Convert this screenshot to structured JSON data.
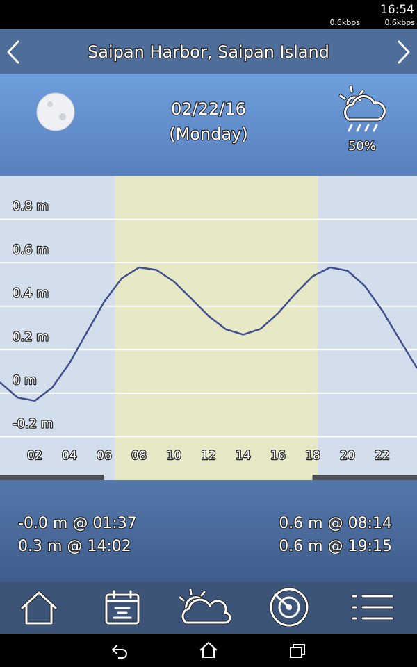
{
  "status_bar": {
    "time": "16:54",
    "upload": "0.6kbps",
    "download": "0.6kbps"
  },
  "header": {
    "title": "Saipan Harbor, Saipan Island"
  },
  "day": {
    "date": "02/22/16",
    "weekday": "(Monday)",
    "precipitation": "50%"
  },
  "chart_data": {
    "type": "line",
    "x": [
      0,
      1,
      2,
      3,
      4,
      5,
      6,
      7,
      8,
      9,
      10,
      11,
      12,
      13,
      14,
      15,
      16,
      17,
      18,
      19,
      20,
      21,
      22,
      23,
      24
    ],
    "values": [
      0.05,
      -0.02,
      -0.035,
      0.025,
      0.138,
      0.28,
      0.421,
      0.528,
      0.578,
      0.567,
      0.514,
      0.436,
      0.355,
      0.294,
      0.27,
      0.296,
      0.367,
      0.458,
      0.538,
      0.578,
      0.563,
      0.493,
      0.38,
      0.247,
      0.115
    ],
    "color": "#3d4f8c",
    "xlim": [
      0,
      24
    ],
    "ylim": [
      -0.4,
      1.0
    ],
    "xticks": [
      {
        "value": 2,
        "label": "02"
      },
      {
        "value": 4,
        "label": "04"
      },
      {
        "value": 6,
        "label": "06"
      },
      {
        "value": 8,
        "label": "08"
      },
      {
        "value": 10,
        "label": "10"
      },
      {
        "value": 12,
        "label": "12"
      },
      {
        "value": 14,
        "label": "14"
      },
      {
        "value": 16,
        "label": "16"
      },
      {
        "value": 18,
        "label": "18"
      },
      {
        "value": 20,
        "label": "20"
      },
      {
        "value": 22,
        "label": "22"
      }
    ],
    "yticks": [
      {
        "value": -0.2,
        "label": "-0.2 m"
      },
      {
        "value": 0,
        "label": "0 m"
      },
      {
        "value": 0.2,
        "label": "0.2 m"
      },
      {
        "value": 0.4,
        "label": "0.4 m"
      },
      {
        "value": 0.6,
        "label": "0.6 m"
      },
      {
        "value": 0.8,
        "label": "0.8 m"
      }
    ],
    "grid": true,
    "shaded_range": [
      6.6,
      18.3
    ]
  },
  "tides": {
    "low": [
      "-0.0 m @ 01:37",
      "0.3 m @ 14:02"
    ],
    "high": [
      "0.6 m @ 08:14",
      "0.6 m @ 19:15"
    ]
  }
}
